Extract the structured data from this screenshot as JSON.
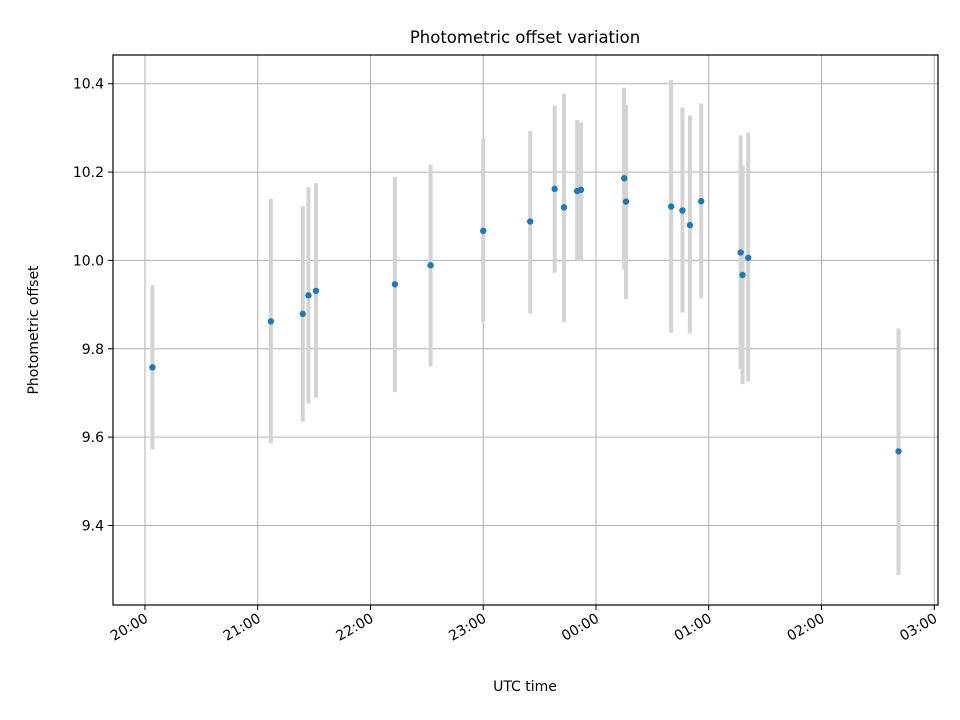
{
  "chart_data": {
    "type": "scatter",
    "title": "Photometric offset variation",
    "xlabel": "UTC time",
    "ylabel": "Photometric offset",
    "grid": true,
    "x_ticks": [
      {
        "label": "20:00",
        "hours": 20
      },
      {
        "label": "21:00",
        "hours": 21
      },
      {
        "label": "22:00",
        "hours": 22
      },
      {
        "label": "23:00",
        "hours": 23
      },
      {
        "label": "00:00",
        "hours": 24
      },
      {
        "label": "01:00",
        "hours": 25
      },
      {
        "label": "02:00",
        "hours": 26
      },
      {
        "label": "03:00",
        "hours": 27
      }
    ],
    "xlim": [
      "19:43",
      "03:02"
    ],
    "ylim": [
      9.22,
      10.465
    ],
    "y_ticks": [
      9.4,
      9.6,
      9.8,
      10.0,
      10.2,
      10.4
    ],
    "y_tick_labels": [
      "9.4",
      "9.6",
      "9.8",
      "10.0",
      "10.2",
      "10.4"
    ],
    "point_color": "#1f77b4",
    "errorbar_color": "#d3d3d3",
    "points": [
      {
        "time": "20:04",
        "y": 9.758,
        "low": 9.572,
        "high": 9.944
      },
      {
        "time": "21:07",
        "y": 9.862,
        "low": 9.586,
        "high": 10.139
      },
      {
        "time": "21:24",
        "y": 9.879,
        "low": 9.635,
        "high": 10.123
      },
      {
        "time": "21:27",
        "y": 9.921,
        "low": 9.676,
        "high": 10.166
      },
      {
        "time": "21:31",
        "y": 9.931,
        "low": 9.689,
        "high": 10.175
      },
      {
        "time": "22:13",
        "y": 9.946,
        "low": 9.702,
        "high": 10.189
      },
      {
        "time": "22:32",
        "y": 9.989,
        "low": 9.76,
        "high": 10.217
      },
      {
        "time": "23:00",
        "y": 10.067,
        "low": 9.862,
        "high": 10.275
      },
      {
        "time": "23:25",
        "y": 10.088,
        "low": 9.88,
        "high": 10.293
      },
      {
        "time": "23:38",
        "y": 10.162,
        "low": 9.972,
        "high": 10.35
      },
      {
        "time": "23:43",
        "y": 10.12,
        "low": 9.86,
        "high": 10.377
      },
      {
        "time": "23:50",
        "y": 10.157,
        "low": 9.998,
        "high": 10.318
      },
      {
        "time": "23:52",
        "y": 10.16,
        "low": 10.0,
        "high": 10.312
      },
      {
        "time": "00:15",
        "y": 10.186,
        "low": 9.98,
        "high": 10.391
      },
      {
        "time": "00:16",
        "y": 10.133,
        "low": 9.912,
        "high": 10.352
      },
      {
        "time": "00:40",
        "y": 10.122,
        "low": 9.836,
        "high": 10.408
      },
      {
        "time": "00:46",
        "y": 10.113,
        "low": 9.882,
        "high": 10.346
      },
      {
        "time": "00:50",
        "y": 10.08,
        "low": 9.835,
        "high": 10.328
      },
      {
        "time": "00:56",
        "y": 10.134,
        "low": 9.914,
        "high": 10.355
      },
      {
        "time": "01:17",
        "y": 10.018,
        "low": 9.754,
        "high": 10.283
      },
      {
        "time": "01:18",
        "y": 9.967,
        "low": 9.72,
        "high": 10.215
      },
      {
        "time": "01:21",
        "y": 10.006,
        "low": 9.726,
        "high": 10.29
      },
      {
        "time": "02:41",
        "y": 9.568,
        "low": 9.288,
        "high": 9.846
      }
    ]
  }
}
